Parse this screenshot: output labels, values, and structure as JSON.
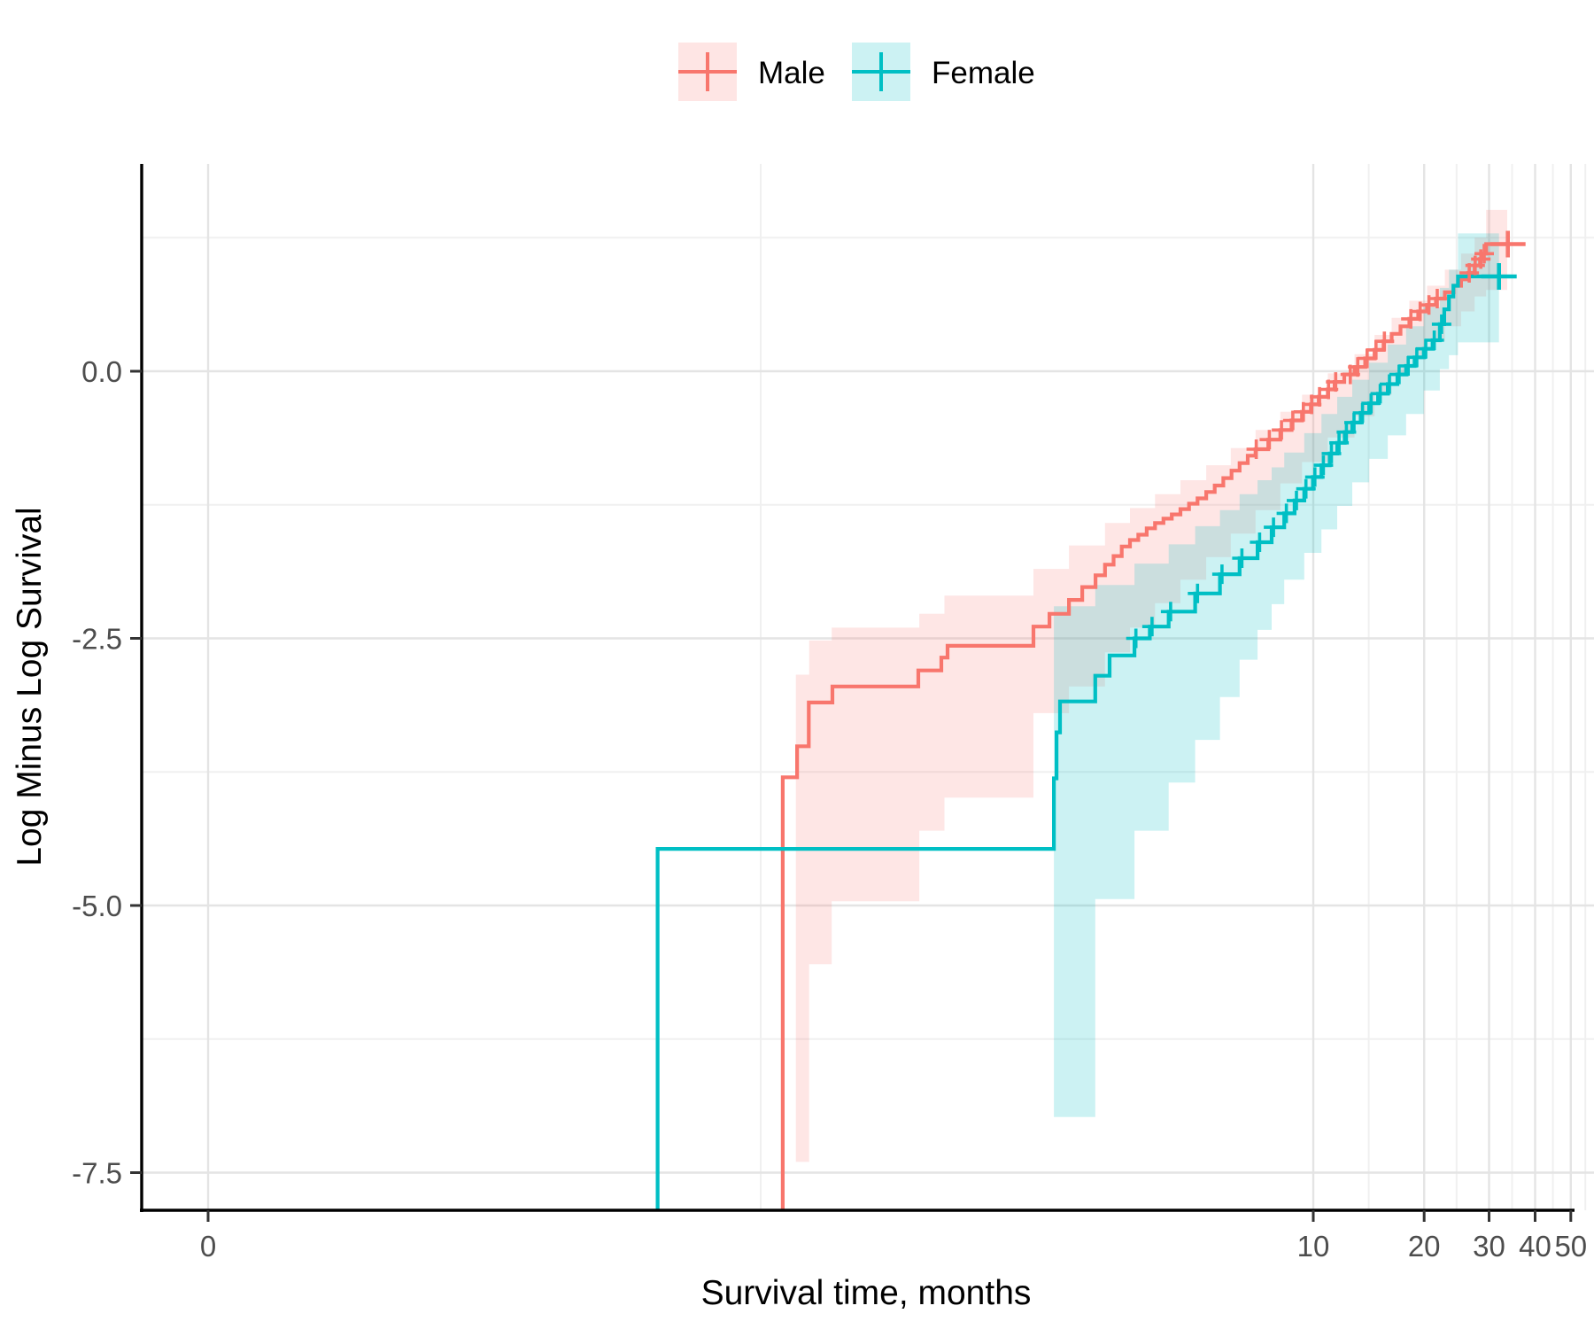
{
  "figure": {
    "legend": {
      "items": [
        {
          "label": "Male",
          "color": "#F8766D",
          "fill": "rgba(248,118,109,0.19)"
        },
        {
          "label": "Female",
          "color": "#00BFC4",
          "fill": "rgba(0,191,196,0.20)"
        }
      ]
    },
    "x_axis": {
      "title": "Survival time, months",
      "tick_labels": [
        "0",
        "10",
        "20",
        "30",
        "40",
        "50"
      ]
    },
    "y_axis": {
      "title": "Log Minus Log Survival",
      "tick_labels": [
        "0.0",
        "-2.5",
        "-5.0",
        "-7.5"
      ]
    }
  },
  "chart_data": {
    "type": "line",
    "subtype": "step-function-with-confidence-ribbon",
    "title": "",
    "xlabel": "Survival time, months",
    "ylabel": "Log Minus Log Survival",
    "x_scale": "log10",
    "legend_position": "top",
    "grid": true,
    "ylim": [
      -7.84,
      1.94
    ],
    "x_ticks": [
      {
        "label": "0",
        "t": 0.01
      },
      {
        "label": "10",
        "t": 10
      },
      {
        "label": "20",
        "t": 20
      },
      {
        "label": "30",
        "t": 30
      },
      {
        "label": "40",
        "t": 40
      },
      {
        "label": "50",
        "t": 50
      }
    ],
    "x_minor_ticks": [
      0.3162,
      14.14,
      24.49,
      34.64,
      44.72,
      54.77
    ],
    "y_ticks": [
      {
        "label": "0.0",
        "v": 0
      },
      {
        "label": "-2.5",
        "v": -2.5
      },
      {
        "label": "-5.0",
        "v": -5
      },
      {
        "label": "-7.5",
        "v": -7.5
      }
    ],
    "y_minor_ticks": [
      1.25,
      -1.25,
      -3.75,
      -6.25
    ],
    "series": [
      {
        "name": "Male",
        "color": "#F8766D",
        "fill": "rgba(248,118,109,0.18)",
        "line_end_t": 33.74,
        "steps": [
          [
            0.363,
            -3.8
          ],
          [
            0.397,
            -3.51
          ],
          [
            0.427,
            -3.1
          ],
          [
            0.495,
            -2.95
          ],
          [
            0.847,
            -2.8
          ],
          [
            0.978,
            -2.68
          ],
          [
            1.017,
            -2.57
          ],
          [
            1.739,
            -2.39
          ],
          [
            1.923,
            -2.27
          ],
          [
            2.172,
            -2.14
          ],
          [
            2.359,
            -2.02
          ],
          [
            2.564,
            -1.91
          ],
          [
            2.72,
            -1.81
          ],
          [
            2.87,
            -1.73
          ],
          [
            3.02,
            -1.64
          ],
          [
            3.18,
            -1.58
          ],
          [
            3.35,
            -1.53
          ],
          [
            3.53,
            -1.47
          ],
          [
            3.72,
            -1.42
          ],
          [
            3.92,
            -1.38
          ],
          [
            4.13,
            -1.34
          ],
          [
            4.36,
            -1.29
          ],
          [
            4.6,
            -1.24
          ],
          [
            4.85,
            -1.19
          ],
          [
            5.12,
            -1.13
          ],
          [
            5.4,
            -1.07
          ],
          [
            5.7,
            -1.0
          ],
          [
            6.0,
            -0.93
          ],
          [
            6.31,
            -0.86
          ],
          [
            6.64,
            -0.79
          ],
          [
            6.97,
            -0.73
          ],
          [
            7.55,
            -0.64
          ],
          [
            8.14,
            -0.55
          ],
          [
            8.73,
            -0.46
          ],
          [
            9.32,
            -0.38
          ],
          [
            9.85,
            -0.31
          ],
          [
            10.35,
            -0.24
          ],
          [
            10.95,
            -0.17
          ],
          [
            11.43,
            -0.1
          ],
          [
            12.14,
            -0.03
          ],
          [
            12.94,
            0.04
          ],
          [
            13.83,
            0.12
          ],
          [
            14.67,
            0.2
          ],
          [
            15.52,
            0.28
          ],
          [
            16.32,
            0.35
          ],
          [
            17.25,
            0.42
          ],
          [
            18.23,
            0.49
          ],
          [
            19.27,
            0.56
          ],
          [
            20.37,
            0.62
          ],
          [
            21.53,
            0.68
          ],
          [
            22.76,
            0.74
          ],
          [
            24.05,
            0.8
          ],
          [
            25.19,
            0.86
          ],
          [
            26.37,
            0.92
          ],
          [
            27.42,
            0.99
          ],
          [
            28.35,
            1.05
          ],
          [
            29.0,
            1.1
          ],
          [
            29.46,
            1.19
          ]
        ],
        "censored": [
          [
            7.0,
            -0.73
          ],
          [
            7.6,
            -0.64
          ],
          [
            8.2,
            -0.55
          ],
          [
            8.8,
            -0.46
          ],
          [
            9.4,
            -0.38
          ],
          [
            9.9,
            -0.31
          ],
          [
            10.4,
            -0.24
          ],
          [
            11.0,
            -0.17
          ],
          [
            11.5,
            -0.1
          ],
          [
            12.6,
            -0.03
          ],
          [
            13.2,
            0.04
          ],
          [
            14.0,
            0.12
          ],
          [
            14.8,
            0.2
          ],
          [
            15.6,
            0.28
          ],
          [
            18.4,
            0.49
          ],
          [
            19.5,
            0.56
          ],
          [
            20.6,
            0.62
          ],
          [
            21.7,
            0.68
          ],
          [
            26.5,
            0.92
          ],
          [
            27.5,
            0.99
          ],
          [
            28.5,
            1.05
          ],
          [
            29.1,
            1.1
          ],
          [
            33.74,
            1.19
          ]
        ],
        "ribbon": [
          [
            0.394,
            0.428,
            -7.4,
            -2.84
          ],
          [
            0.428,
            0.493,
            -5.55,
            -2.52
          ],
          [
            0.493,
            0.852,
            -4.96,
            -2.4
          ],
          [
            0.852,
            0.997,
            -4.3,
            -2.27
          ],
          [
            0.997,
            1.739,
            -3.99,
            -2.1
          ],
          [
            1.739,
            2.172,
            -3.2,
            -1.85
          ],
          [
            2.172,
            2.72,
            -2.95,
            -1.63
          ],
          [
            2.72,
            3.18,
            -2.63,
            -1.42
          ],
          [
            3.18,
            3.72,
            -2.4,
            -1.28
          ],
          [
            3.72,
            4.36,
            -2.17,
            -1.15
          ],
          [
            4.36,
            5.12,
            -1.95,
            -1.02
          ],
          [
            5.12,
            5.97,
            -1.74,
            -0.88
          ],
          [
            5.97,
            6.97,
            -1.52,
            -0.72
          ],
          [
            6.97,
            8.14,
            -1.3,
            -0.55
          ],
          [
            8.14,
            9.32,
            -1.05,
            -0.38
          ],
          [
            9.32,
            10.95,
            -0.85,
            -0.22
          ],
          [
            10.95,
            12.94,
            -0.62,
            -0.02
          ],
          [
            12.94,
            14.67,
            -0.42,
            0.16
          ],
          [
            14.67,
            16.32,
            -0.22,
            0.34
          ],
          [
            16.32,
            18.23,
            -0.05,
            0.5
          ],
          [
            18.23,
            20.37,
            0.12,
            0.66
          ],
          [
            20.37,
            22.76,
            0.28,
            0.8
          ],
          [
            22.76,
            25.19,
            0.42,
            0.95
          ],
          [
            25.19,
            27.42,
            0.56,
            1.1
          ],
          [
            27.42,
            29.46,
            0.7,
            1.25
          ],
          [
            29.46,
            33.6,
            0.76,
            1.51
          ]
        ]
      },
      {
        "name": "Female",
        "color": "#00BFC4",
        "fill": "rgba(0,191,196,0.20)",
        "line_end_t": 31.93,
        "steps": [
          [
            0.166,
            -4.47
          ],
          [
            1.977,
            -3.81
          ],
          [
            2.01,
            -3.38
          ],
          [
            2.053,
            -3.09
          ],
          [
            2.56,
            -2.85
          ],
          [
            2.8,
            -2.66
          ],
          [
            3.27,
            -2.5
          ],
          [
            3.6,
            -2.39
          ],
          [
            4.05,
            -2.25
          ],
          [
            4.78,
            -2.08
          ],
          [
            5.58,
            -1.9
          ],
          [
            6.31,
            -1.75
          ],
          [
            7.06,
            -1.6
          ],
          [
            7.71,
            -1.46
          ],
          [
            8.34,
            -1.33
          ],
          [
            8.9,
            -1.21
          ],
          [
            9.45,
            -1.1
          ],
          [
            9.98,
            -0.99
          ],
          [
            10.52,
            -0.88
          ],
          [
            11.08,
            -0.77
          ],
          [
            11.61,
            -0.67
          ],
          [
            12.17,
            -0.57
          ],
          [
            12.76,
            -0.48
          ],
          [
            13.45,
            -0.39
          ],
          [
            14.18,
            -0.3
          ],
          [
            14.99,
            -0.21
          ],
          [
            15.93,
            -0.12
          ],
          [
            16.92,
            -0.03
          ],
          [
            17.86,
            0.05
          ],
          [
            18.84,
            0.13
          ],
          [
            19.95,
            0.21
          ],
          [
            21.08,
            0.29
          ],
          [
            22.05,
            0.44
          ],
          [
            22.68,
            0.58
          ],
          [
            23.35,
            0.7
          ],
          [
            24.0,
            0.8
          ],
          [
            24.7,
            0.887
          ]
        ],
        "censored": [
          [
            3.3,
            -2.5
          ],
          [
            3.65,
            -2.39
          ],
          [
            4.1,
            -2.25
          ],
          [
            4.85,
            -2.08
          ],
          [
            5.65,
            -1.9
          ],
          [
            6.4,
            -1.75
          ],
          [
            7.15,
            -1.6
          ],
          [
            7.8,
            -1.46
          ],
          [
            8.45,
            -1.33
          ],
          [
            9.0,
            -1.21
          ],
          [
            9.55,
            -1.1
          ],
          [
            10.1,
            -0.99
          ],
          [
            10.65,
            -0.88
          ],
          [
            11.2,
            -0.77
          ],
          [
            11.75,
            -0.67
          ],
          [
            12.3,
            -0.57
          ],
          [
            12.9,
            -0.48
          ],
          [
            13.6,
            -0.39
          ],
          [
            14.35,
            -0.3
          ],
          [
            15.2,
            -0.21
          ],
          [
            16.1,
            -0.12
          ],
          [
            17.1,
            -0.03
          ],
          [
            18.1,
            0.05
          ],
          [
            19.1,
            0.13
          ],
          [
            20.2,
            0.21
          ],
          [
            21.3,
            0.29
          ],
          [
            22.3,
            0.44
          ],
          [
            31.93,
            0.887
          ]
        ],
        "ribbon": [
          [
            1.977,
            2.56,
            -6.98,
            -2.2
          ],
          [
            2.56,
            3.27,
            -4.94,
            -2.0
          ],
          [
            3.27,
            4.05,
            -4.3,
            -1.8
          ],
          [
            4.05,
            4.78,
            -3.85,
            -1.62
          ],
          [
            4.78,
            5.58,
            -3.45,
            -1.45
          ],
          [
            5.58,
            6.31,
            -3.05,
            -1.3
          ],
          [
            6.31,
            7.06,
            -2.7,
            -1.15
          ],
          [
            7.06,
            7.71,
            -2.42,
            -1.02
          ],
          [
            7.71,
            8.34,
            -2.18,
            -0.9
          ],
          [
            8.34,
            9.45,
            -1.95,
            -0.76
          ],
          [
            9.45,
            10.52,
            -1.7,
            -0.58
          ],
          [
            10.52,
            11.61,
            -1.48,
            -0.4
          ],
          [
            11.61,
            12.76,
            -1.26,
            -0.24
          ],
          [
            12.76,
            14.18,
            -1.04,
            -0.08
          ],
          [
            14.18,
            15.93,
            -0.82,
            0.08
          ],
          [
            15.93,
            17.86,
            -0.6,
            0.25
          ],
          [
            17.86,
            19.95,
            -0.4,
            0.42
          ],
          [
            19.95,
            22.05,
            -0.18,
            0.6
          ],
          [
            22.05,
            23.35,
            0.02,
            0.78
          ],
          [
            23.35,
            24.7,
            0.15,
            0.95
          ],
          [
            24.7,
            31.93,
            0.27,
            1.29
          ]
        ]
      }
    ]
  }
}
